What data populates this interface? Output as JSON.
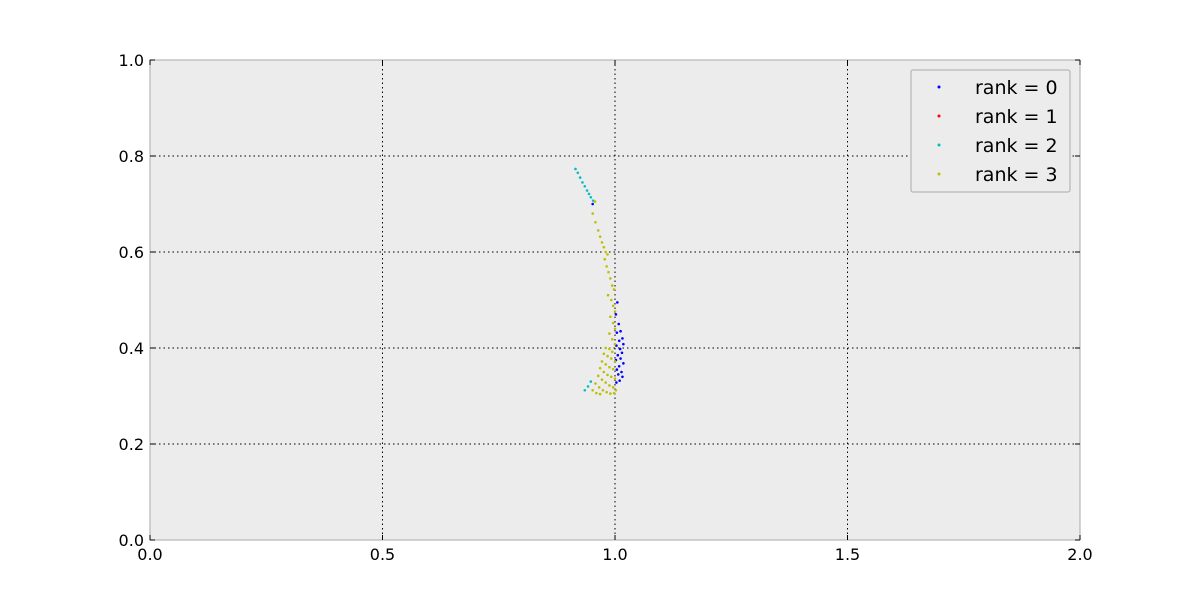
{
  "chart_data": {
    "type": "scatter",
    "title": "",
    "xlabel": "",
    "ylabel": "",
    "xlim": [
      0.0,
      2.0
    ],
    "ylim": [
      0.0,
      1.0
    ],
    "xticks": [
      "0.0",
      "0.5",
      "1.0",
      "1.5",
      "2.0"
    ],
    "yticks": [
      "0.0",
      "0.2",
      "0.4",
      "0.6",
      "0.8",
      "1.0"
    ],
    "grid": true,
    "legend_position": "top-right",
    "series": [
      {
        "name": "rank = 0",
        "color": "#0000ff",
        "points": [
          [
            0.952,
            0.7
          ],
          [
            1.005,
            0.495
          ],
          [
            1.002,
            0.47
          ],
          [
            1.008,
            0.45
          ],
          [
            1.012,
            0.435
          ],
          [
            1.004,
            0.432
          ],
          [
            1.016,
            0.42
          ],
          [
            1.009,
            0.415
          ],
          [
            1.018,
            0.408
          ],
          [
            1.003,
            0.405
          ],
          [
            1.011,
            0.398
          ],
          [
            1.015,
            0.39
          ],
          [
            1.006,
            0.385
          ],
          [
            1.012,
            0.378
          ],
          [
            1.002,
            0.375
          ],
          [
            1.018,
            0.368
          ],
          [
            1.009,
            0.362
          ],
          [
            1.004,
            0.355
          ],
          [
            1.014,
            0.35
          ],
          [
            1.007,
            0.345
          ],
          [
            1.016,
            0.34
          ],
          [
            1.01,
            0.332
          ],
          [
            1.003,
            0.328
          ]
        ]
      },
      {
        "name": "rank = 1",
        "color": "#ff0000",
        "points": []
      },
      {
        "name": "rank = 2",
        "color": "#00bfbf",
        "points": [
          [
            0.915,
            0.773
          ],
          [
            0.92,
            0.765
          ],
          [
            0.925,
            0.755
          ],
          [
            0.93,
            0.745
          ],
          [
            0.935,
            0.737
          ],
          [
            0.94,
            0.728
          ],
          [
            0.944,
            0.721
          ],
          [
            0.948,
            0.714
          ],
          [
            0.953,
            0.707
          ],
          [
            0.935,
            0.312
          ],
          [
            0.942,
            0.32
          ],
          [
            0.948,
            0.33
          ]
        ]
      },
      {
        "name": "rank = 3",
        "color": "#bfbf00",
        "points": [
          [
            0.957,
            0.705
          ],
          [
            0.952,
            0.68
          ],
          [
            0.958,
            0.662
          ],
          [
            0.964,
            0.645
          ],
          [
            0.968,
            0.632
          ],
          [
            0.972,
            0.62
          ],
          [
            0.976,
            0.61
          ],
          [
            0.98,
            0.6
          ],
          [
            0.984,
            0.595
          ],
          [
            0.978,
            0.585
          ],
          [
            0.982,
            0.57
          ],
          [
            0.986,
            0.558
          ],
          [
            0.99,
            0.545
          ],
          [
            0.994,
            0.53
          ],
          [
            0.998,
            0.522
          ],
          [
            0.985,
            0.51
          ],
          [
            0.992,
            0.5
          ],
          [
            0.996,
            0.488
          ],
          [
            1.0,
            0.476
          ],
          [
            0.99,
            0.465
          ],
          [
            0.996,
            0.452
          ],
          [
            1.0,
            0.44
          ],
          [
            0.988,
            0.43
          ],
          [
            0.994,
            0.418
          ],
          [
            1.0,
            0.408
          ],
          [
            0.98,
            0.4
          ],
          [
            0.988,
            0.398
          ],
          [
            0.994,
            0.392
          ],
          [
            0.976,
            0.388
          ],
          [
            0.984,
            0.383
          ],
          [
            0.992,
            0.378
          ],
          [
            1.0,
            0.372
          ],
          [
            0.972,
            0.372
          ],
          [
            0.98,
            0.366
          ],
          [
            0.988,
            0.36
          ],
          [
            0.996,
            0.356
          ],
          [
            0.968,
            0.358
          ],
          [
            0.976,
            0.35
          ],
          [
            0.984,
            0.344
          ],
          [
            0.992,
            0.34
          ],
          [
            1.0,
            0.336
          ],
          [
            0.964,
            0.342
          ],
          [
            0.972,
            0.334
          ],
          [
            0.98,
            0.328
          ],
          [
            0.988,
            0.322
          ],
          [
            0.996,
            0.318
          ],
          [
            0.958,
            0.326
          ],
          [
            0.966,
            0.318
          ],
          [
            0.974,
            0.312
          ],
          [
            0.982,
            0.308
          ],
          [
            0.99,
            0.305
          ],
          [
            0.998,
            0.306
          ],
          [
            0.952,
            0.312
          ],
          [
            0.96,
            0.306
          ],
          [
            0.968,
            0.304
          ],
          [
            1.002,
            0.312
          ]
        ]
      }
    ]
  }
}
